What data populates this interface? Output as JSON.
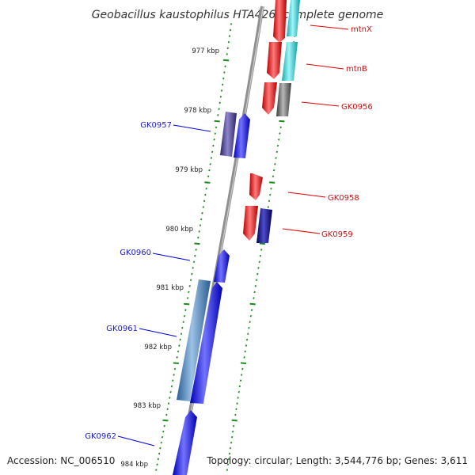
{
  "title": "Geobacillus kaustophilus HTA426, complete genome",
  "footer": {
    "accession": "Accession: NC_006510",
    "topology": "Topology: circular; Length: 3,544,776 bp; Genes: 3,611"
  },
  "colors": {
    "forward": "#0000ee",
    "reverse": "#ee0000",
    "backbone": "#999999",
    "tick": "#1a8a1a",
    "label_forward": "#1a1acc",
    "label_reverse": "#cc1111"
  },
  "ticks": [
    "977 kbp",
    "978 kbp",
    "979 kbp",
    "980 kbp",
    "981 kbp",
    "982 kbp",
    "983 kbp",
    "984 kbp"
  ],
  "genes": [
    {
      "name": "mtnX",
      "strand": "reverse"
    },
    {
      "name": "mtnB",
      "strand": "reverse"
    },
    {
      "name": "GK0956",
      "strand": "reverse"
    },
    {
      "name": "GK0957",
      "strand": "forward"
    },
    {
      "name": "GK0958",
      "strand": "reverse"
    },
    {
      "name": "GK0959",
      "strand": "reverse"
    },
    {
      "name": "GK0960",
      "strand": "forward"
    },
    {
      "name": "GK0961",
      "strand": "forward"
    },
    {
      "name": "GK0962",
      "strand": "forward"
    }
  ]
}
